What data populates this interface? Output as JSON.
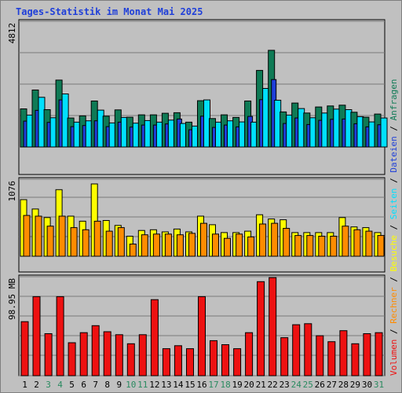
{
  "title": "Tages-Statistik im Monat Mai 2025",
  "colors": {
    "anfragen": "#0f7a55",
    "dateien": "#1f3fd9",
    "seiten": "#00e0ff",
    "besuche": "#ffff00",
    "rechner": "#ff8c00",
    "volumen": "#ee1111",
    "weekend": "#2a8a60",
    "weekday": "#000000"
  },
  "chart_data": [
    {
      "type": "bar",
      "name": "panel-anfragen-dateien-seiten",
      "ymax_label": "4812",
      "ylim": [
        0,
        4812
      ],
      "categories": [
        "1",
        "2",
        "3",
        "4",
        "5",
        "6",
        "7",
        "8",
        "9",
        "10",
        "11",
        "12",
        "13",
        "14",
        "15",
        "16",
        "17",
        "18",
        "19",
        "20",
        "21",
        "22",
        "23",
        "24",
        "25",
        "26",
        "27",
        "28",
        "29",
        "30",
        "31"
      ],
      "series": [
        {
          "name": "Anfragen",
          "values": [
            1460,
            2180,
            1430,
            2560,
            1110,
            1190,
            1760,
            1180,
            1420,
            1140,
            1230,
            1230,
            1290,
            1310,
            950,
            1770,
            1090,
            1230,
            1130,
            1760,
            2930,
            3700,
            1340,
            1680,
            1300,
            1530,
            1570,
            1600,
            1330,
            1140,
            1260
          ]
        },
        {
          "name": "Dateien",
          "values": [
            990,
            1400,
            940,
            1800,
            780,
            820,
            1000,
            780,
            950,
            760,
            840,
            840,
            880,
            1070,
            660,
            1180,
            750,
            840,
            770,
            1170,
            1810,
            2580,
            900,
            1110,
            860,
            1020,
            1060,
            1070,
            890,
            770,
            850
          ]
        },
        {
          "name": "Seiten",
          "values": [
            1220,
            1900,
            1120,
            2030,
            950,
            1000,
            1410,
            920,
            1130,
            910,
            1010,
            950,
            1030,
            900,
            800,
            1800,
            950,
            1000,
            960,
            950,
            2240,
            1790,
            1220,
            1470,
            1120,
            1300,
            1450,
            1430,
            1160,
            960,
            1110
          ]
        }
      ]
    },
    {
      "type": "bar",
      "name": "panel-besuche-rechner",
      "ymax_label": "1076",
      "ylim": [
        0,
        1076
      ],
      "categories": [
        "1",
        "2",
        "3",
        "4",
        "5",
        "6",
        "7",
        "8",
        "9",
        "10",
        "11",
        "12",
        "13",
        "14",
        "15",
        "16",
        "17",
        "18",
        "19",
        "20",
        "21",
        "22",
        "23",
        "24",
        "25",
        "26",
        "27",
        "28",
        "29",
        "30",
        "31"
      ],
      "series": [
        {
          "name": "Besuche",
          "values": [
            790,
            660,
            540,
            930,
            560,
            490,
            1010,
            500,
            430,
            280,
            360,
            370,
            340,
            380,
            340,
            560,
            440,
            330,
            330,
            350,
            580,
            520,
            510,
            330,
            330,
            330,
            330,
            540,
            410,
            400,
            330
          ]
        },
        {
          "name": "Rechner",
          "values": [
            570,
            560,
            420,
            560,
            400,
            370,
            490,
            350,
            400,
            170,
            300,
            310,
            310,
            300,
            320,
            460,
            310,
            250,
            310,
            270,
            450,
            460,
            390,
            290,
            290,
            280,
            280,
            420,
            370,
            350,
            290
          ]
        }
      ]
    },
    {
      "type": "bar",
      "name": "panel-volumen",
      "ymax_label": "98.95 MB",
      "ylim": [
        0,
        98.95
      ],
      "categories": [
        "1",
        "2",
        "3",
        "4",
        "5",
        "6",
        "7",
        "8",
        "9",
        "10",
        "11",
        "12",
        "13",
        "14",
        "15",
        "16",
        "17",
        "18",
        "19",
        "20",
        "21",
        "22",
        "23",
        "24",
        "25",
        "26",
        "27",
        "28",
        "29",
        "30",
        "31"
      ],
      "series": [
        {
          "name": "Volumen",
          "values": [
            54,
            79,
            42,
            79,
            33,
            43,
            50,
            44,
            41,
            32,
            41,
            76,
            27,
            30,
            27,
            79,
            35,
            31,
            27,
            43,
            94,
            98,
            38,
            51,
            52,
            40,
            34,
            45,
            32,
            42,
            43
          ]
        }
      ]
    }
  ],
  "weekend_days": [
    "3",
    "4",
    "10",
    "11",
    "17",
    "18",
    "24",
    "25",
    "31"
  ],
  "legend": [
    {
      "label": "Volumen",
      "color": "#ee1111"
    },
    {
      "label": "Rechner",
      "color": "#ff8c00"
    },
    {
      "label": "Besuche",
      "color": "#ffff00"
    },
    {
      "label": "Seiten",
      "color": "#00e0ff"
    },
    {
      "label": "Dateien",
      "color": "#1f3fd9"
    },
    {
      "label": "Anfragen",
      "color": "#0f7a55"
    }
  ],
  "legend_separator": "/"
}
